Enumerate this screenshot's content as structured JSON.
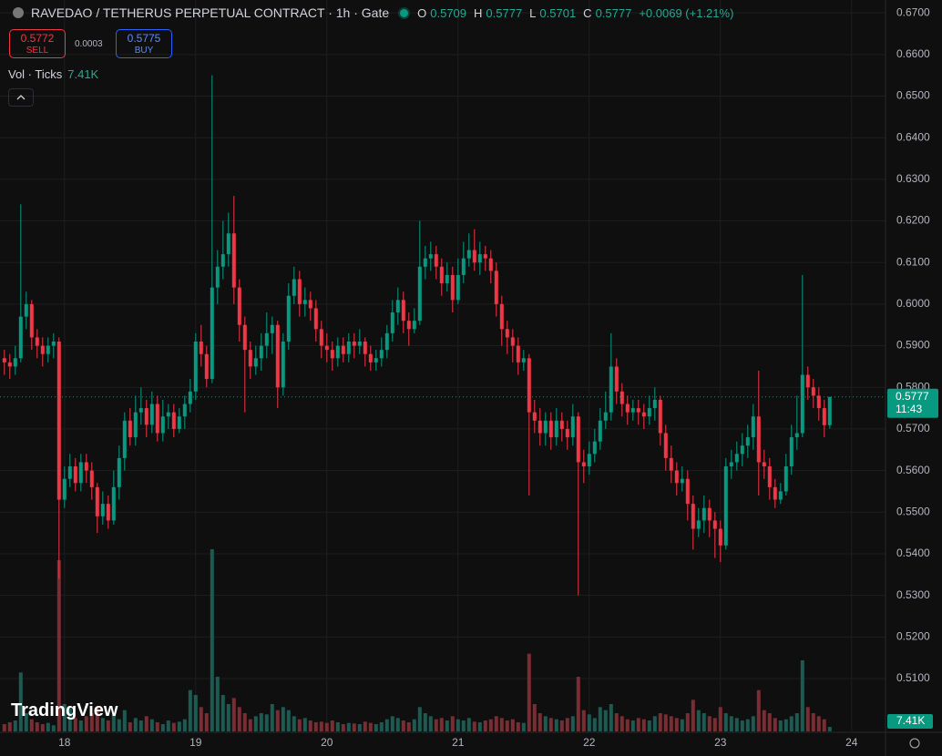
{
  "header": {
    "title": "RAVEDAO / TETHERUS PERPETUAL CONTRACT · 1h · Gate",
    "ohlc": [
      {
        "key": "O",
        "value": "0.5709"
      },
      {
        "key": "H",
        "value": "0.5777"
      },
      {
        "key": "L",
        "value": "0.5701"
      },
      {
        "key": "C",
        "value": "0.5777"
      }
    ],
    "change": "+0.0069 (+1.21%)",
    "sell": {
      "price": "0.5772",
      "label": "SELL"
    },
    "spread": "0.0003",
    "buy": {
      "price": "0.5775",
      "label": "BUY"
    },
    "volume": {
      "label": "Vol · Ticks",
      "value": "7.41K"
    },
    "logo": "TradingView"
  },
  "chart_data": {
    "type": "candlestick",
    "up_color": "#089981",
    "down_color": "#f23645",
    "volume_up_color": "#1c5b53",
    "volume_down_color": "#7a2d33",
    "grid": true,
    "xlim": [
      -11.8,
      150.2
    ],
    "xticks": [
      {
        "value": 0,
        "label": "18"
      },
      {
        "value": 24,
        "label": "19"
      },
      {
        "value": 48,
        "label": "20"
      },
      {
        "value": 72,
        "label": "21"
      },
      {
        "value": 96,
        "label": "22"
      },
      {
        "value": 120,
        "label": "23"
      },
      {
        "value": 144,
        "label": "24"
      }
    ],
    "ylim": [
      0.4973,
      0.6731
    ],
    "yticks": [
      {
        "value": 0.51,
        "label": "0.5100"
      },
      {
        "value": 0.52,
        "label": "0.5200"
      },
      {
        "value": 0.53,
        "label": "0.5300"
      },
      {
        "value": 0.54,
        "label": "0.5400"
      },
      {
        "value": 0.55,
        "label": "0.5500"
      },
      {
        "value": 0.56,
        "label": "0.5600"
      },
      {
        "value": 0.57,
        "label": "0.5700"
      },
      {
        "value": 0.58,
        "label": "0.5800"
      },
      {
        "value": 0.59,
        "label": "0.5900"
      },
      {
        "value": 0.6,
        "label": "0.6000"
      },
      {
        "value": 0.61,
        "label": "0.6100"
      },
      {
        "value": 0.62,
        "label": "0.6200"
      },
      {
        "value": 0.63,
        "label": "0.6300"
      },
      {
        "value": 0.64,
        "label": "0.6400"
      },
      {
        "value": 0.65,
        "label": "0.6500"
      },
      {
        "value": 0.66,
        "label": "0.6600"
      },
      {
        "value": 0.67,
        "label": "0.6700"
      }
    ],
    "last_price": {
      "value": 0.5777,
      "label": "0.5777"
    },
    "countdown": "11:43",
    "x": [
      -11,
      -10,
      -9,
      -8,
      -7,
      -6,
      -5,
      -4,
      -3,
      -2,
      -1,
      0,
      1,
      2,
      3,
      4,
      5,
      6,
      7,
      8,
      9,
      10,
      11,
      12,
      13,
      14,
      15,
      16,
      17,
      18,
      19,
      20,
      21,
      22,
      23,
      24,
      25,
      26,
      27,
      28,
      29,
      30,
      31,
      32,
      33,
      34,
      35,
      36,
      37,
      38,
      39,
      40,
      41,
      42,
      43,
      44,
      45,
      46,
      47,
      48,
      49,
      50,
      51,
      52,
      53,
      54,
      55,
      56,
      57,
      58,
      59,
      60,
      61,
      62,
      63,
      64,
      65,
      66,
      67,
      68,
      69,
      70,
      71,
      72,
      73,
      74,
      75,
      76,
      77,
      78,
      79,
      80,
      81,
      82,
      83,
      84,
      85,
      86,
      87,
      88,
      89,
      90,
      91,
      92,
      93,
      94,
      95,
      96,
      97,
      98,
      99,
      100,
      101,
      102,
      103,
      104,
      105,
      106,
      107,
      108,
      109,
      110,
      111,
      112,
      113,
      114,
      115,
      116,
      117,
      118,
      119,
      120,
      121,
      122,
      123,
      124,
      125,
      126,
      127,
      128,
      129,
      130,
      131,
      132,
      133,
      134,
      135,
      136,
      137,
      138,
      139,
      140
    ],
    "open": [
      0.587,
      0.586,
      0.585,
      0.587,
      0.597,
      0.6,
      0.592,
      0.59,
      0.588,
      0.59,
      0.591,
      0.553,
      0.558,
      0.561,
      0.557,
      0.562,
      0.56,
      0.556,
      0.549,
      0.552,
      0.548,
      0.556,
      0.563,
      0.572,
      0.568,
      0.574,
      0.575,
      0.571,
      0.576,
      0.569,
      0.573,
      0.574,
      0.57,
      0.573,
      0.576,
      0.579,
      0.591,
      0.588,
      0.582,
      0.604,
      0.609,
      0.612,
      0.617,
      0.604,
      0.595,
      0.589,
      0.585,
      0.587,
      0.59,
      0.593,
      0.595,
      0.58,
      0.591,
      0.602,
      0.606,
      0.6,
      0.601,
      0.599,
      0.594,
      0.59,
      0.589,
      0.587,
      0.59,
      0.588,
      0.591,
      0.59,
      0.591,
      0.588,
      0.586,
      0.587,
      0.589,
      0.593,
      0.598,
      0.601,
      0.596,
      0.594,
      0.596,
      0.609,
      0.611,
      0.612,
      0.609,
      0.605,
      0.607,
      0.601,
      0.607,
      0.611,
      0.613,
      0.61,
      0.612,
      0.611,
      0.608,
      0.6,
      0.594,
      0.592,
      0.59,
      0.586,
      0.587,
      0.574,
      0.572,
      0.569,
      0.572,
      0.568,
      0.572,
      0.57,
      0.568,
      0.573,
      0.562,
      0.561,
      0.564,
      0.567,
      0.572,
      0.574,
      0.585,
      0.579,
      0.576,
      0.574,
      0.575,
      0.574,
      0.573,
      0.575,
      0.577,
      0.569,
      0.563,
      0.56,
      0.557,
      0.558,
      0.552,
      0.546,
      0.548,
      0.551,
      0.548,
      0.546,
      0.542,
      0.561,
      0.562,
      0.564,
      0.566,
      0.568,
      0.573,
      0.562,
      0.561,
      0.556,
      0.553,
      0.555,
      0.561,
      0.568,
      0.569,
      0.583,
      0.58,
      0.578,
      0.575,
      0.5709
    ],
    "high": [
      0.589,
      0.588,
      0.59,
      0.624,
      0.603,
      0.601,
      0.594,
      0.592,
      0.592,
      0.593,
      0.592,
      0.561,
      0.564,
      0.563,
      0.564,
      0.564,
      0.562,
      0.557,
      0.555,
      0.554,
      0.56,
      0.566,
      0.574,
      0.575,
      0.578,
      0.58,
      0.577,
      0.579,
      0.578,
      0.577,
      0.576,
      0.576,
      0.575,
      0.578,
      0.582,
      0.593,
      0.595,
      0.59,
      0.655,
      0.613,
      0.62,
      0.622,
      0.626,
      0.606,
      0.597,
      0.591,
      0.59,
      0.593,
      0.598,
      0.597,
      0.596,
      0.593,
      0.605,
      0.609,
      0.608,
      0.604,
      0.603,
      0.601,
      0.596,
      0.593,
      0.591,
      0.592,
      0.592,
      0.593,
      0.593,
      0.594,
      0.592,
      0.59,
      0.589,
      0.592,
      0.595,
      0.601,
      0.604,
      0.603,
      0.598,
      0.599,
      0.62,
      0.614,
      0.615,
      0.614,
      0.611,
      0.61,
      0.609,
      0.611,
      0.615,
      0.617,
      0.618,
      0.615,
      0.614,
      0.613,
      0.61,
      0.602,
      0.596,
      0.594,
      0.592,
      0.589,
      0.588,
      0.577,
      0.575,
      0.574,
      0.574,
      0.575,
      0.574,
      0.572,
      0.576,
      0.574,
      0.565,
      0.567,
      0.57,
      0.575,
      0.579,
      0.593,
      0.587,
      0.581,
      0.578,
      0.577,
      0.577,
      0.576,
      0.578,
      0.58,
      0.578,
      0.571,
      0.566,
      0.562,
      0.561,
      0.56,
      0.554,
      0.551,
      0.554,
      0.553,
      0.55,
      0.548,
      0.563,
      0.565,
      0.567,
      0.569,
      0.571,
      0.576,
      0.584,
      0.565,
      0.563,
      0.558,
      0.557,
      0.564,
      0.571,
      0.578,
      0.607,
      0.585,
      0.582,
      0.58,
      0.577,
      0.5777
    ],
    "low": [
      0.583,
      0.582,
      0.583,
      0.586,
      0.594,
      0.589,
      0.587,
      0.585,
      0.586,
      0.587,
      0.534,
      0.551,
      0.556,
      0.555,
      0.555,
      0.557,
      0.553,
      0.545,
      0.547,
      0.546,
      0.547,
      0.553,
      0.56,
      0.566,
      0.566,
      0.571,
      0.568,
      0.569,
      0.567,
      0.567,
      0.57,
      0.568,
      0.569,
      0.57,
      0.574,
      0.577,
      0.585,
      0.58,
      0.581,
      0.6,
      0.606,
      0.609,
      0.6,
      0.591,
      0.574,
      0.582,
      0.583,
      0.584,
      0.587,
      0.588,
      0.575,
      0.578,
      0.589,
      0.6,
      0.597,
      0.597,
      0.596,
      0.591,
      0.587,
      0.586,
      0.584,
      0.585,
      0.586,
      0.586,
      0.587,
      0.588,
      0.585,
      0.584,
      0.584,
      0.585,
      0.587,
      0.591,
      0.595,
      0.593,
      0.59,
      0.593,
      0.595,
      0.606,
      0.608,
      0.606,
      0.602,
      0.603,
      0.598,
      0.6,
      0.605,
      0.609,
      0.608,
      0.607,
      0.608,
      0.605,
      0.597,
      0.59,
      0.588,
      0.586,
      0.583,
      0.584,
      0.554,
      0.569,
      0.566,
      0.566,
      0.565,
      0.566,
      0.567,
      0.565,
      0.566,
      0.53,
      0.557,
      0.559,
      0.562,
      0.565,
      0.57,
      0.572,
      0.576,
      0.573,
      0.571,
      0.572,
      0.571,
      0.57,
      0.571,
      0.572,
      0.566,
      0.56,
      0.557,
      0.554,
      0.555,
      0.548,
      0.541,
      0.544,
      0.545,
      0.544,
      0.539,
      0.538,
      0.541,
      0.558,
      0.56,
      0.561,
      0.563,
      0.565,
      0.554,
      0.558,
      0.553,
      0.551,
      0.552,
      0.554,
      0.559,
      0.565,
      0.568,
      0.577,
      0.575,
      0.572,
      0.568,
      0.5701
    ],
    "close": [
      0.586,
      0.585,
      0.587,
      0.597,
      0.6,
      0.592,
      0.59,
      0.588,
      0.59,
      0.591,
      0.553,
      0.558,
      0.561,
      0.557,
      0.562,
      0.56,
      0.556,
      0.549,
      0.552,
      0.548,
      0.556,
      0.563,
      0.572,
      0.568,
      0.574,
      0.575,
      0.571,
      0.576,
      0.569,
      0.573,
      0.574,
      0.57,
      0.573,
      0.576,
      0.579,
      0.591,
      0.588,
      0.582,
      0.604,
      0.609,
      0.612,
      0.617,
      0.604,
      0.595,
      0.589,
      0.585,
      0.587,
      0.59,
      0.593,
      0.595,
      0.58,
      0.591,
      0.602,
      0.606,
      0.6,
      0.601,
      0.599,
      0.594,
      0.59,
      0.589,
      0.587,
      0.59,
      0.588,
      0.591,
      0.59,
      0.591,
      0.588,
      0.586,
      0.587,
      0.589,
      0.593,
      0.598,
      0.601,
      0.596,
      0.594,
      0.596,
      0.609,
      0.611,
      0.612,
      0.609,
      0.605,
      0.607,
      0.601,
      0.607,
      0.611,
      0.613,
      0.61,
      0.612,
      0.611,
      0.608,
      0.6,
      0.594,
      0.592,
      0.59,
      0.586,
      0.587,
      0.574,
      0.572,
      0.569,
      0.572,
      0.568,
      0.572,
      0.57,
      0.568,
      0.573,
      0.562,
      0.561,
      0.564,
      0.567,
      0.572,
      0.574,
      0.585,
      0.579,
      0.576,
      0.574,
      0.575,
      0.574,
      0.573,
      0.575,
      0.577,
      0.569,
      0.563,
      0.56,
      0.557,
      0.558,
      0.552,
      0.546,
      0.548,
      0.551,
      0.548,
      0.546,
      0.542,
      0.561,
      0.562,
      0.564,
      0.566,
      0.568,
      0.573,
      0.562,
      0.561,
      0.556,
      0.553,
      0.555,
      0.561,
      0.568,
      0.569,
      0.583,
      0.58,
      0.578,
      0.575,
      0.5709,
      0.5777
    ],
    "volume": [
      12000,
      15000,
      18000,
      97000,
      30000,
      20000,
      15000,
      12000,
      14000,
      10000,
      282000,
      45000,
      38000,
      22000,
      18000,
      25000,
      30000,
      40000,
      22000,
      18000,
      28000,
      20000,
      35000,
      15000,
      22000,
      18000,
      25000,
      20000,
      15000,
      12000,
      18000,
      14000,
      16000,
      20000,
      68000,
      60000,
      40000,
      30000,
      300000,
      90000,
      60000,
      45000,
      55000,
      40000,
      30000,
      20000,
      25000,
      30000,
      28000,
      45000,
      35000,
      40000,
      35000,
      25000,
      20000,
      22000,
      18000,
      15000,
      16000,
      14000,
      18000,
      15000,
      12000,
      14000,
      13000,
      12000,
      16000,
      14000,
      12000,
      15000,
      20000,
      25000,
      22000,
      18000,
      15000,
      20000,
      40000,
      30000,
      25000,
      20000,
      22000,
      18000,
      25000,
      20000,
      18000,
      22000,
      16000,
      15000,
      18000,
      20000,
      25000,
      22000,
      18000,
      20000,
      15000,
      14000,
      128000,
      45000,
      30000,
      25000,
      22000,
      20000,
      18000,
      22000,
      25000,
      90000,
      35000,
      28000,
      22000,
      40000,
      35000,
      45000,
      30000,
      25000,
      20000,
      18000,
      22000,
      20000,
      18000,
      25000,
      30000,
      28000,
      25000,
      22000,
      20000,
      30000,
      52000,
      35000,
      30000,
      25000,
      22000,
      40000,
      30000,
      25000,
      22000,
      18000,
      20000,
      25000,
      68000,
      35000,
      30000,
      22000,
      18000,
      20000,
      25000,
      30000,
      117000,
      40000,
      30000,
      25000,
      20000,
      7410
    ]
  }
}
